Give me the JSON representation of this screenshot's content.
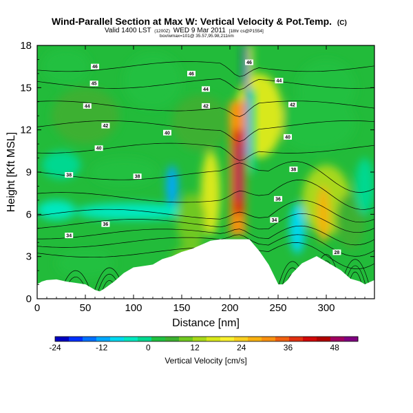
{
  "chart_data": {
    "type": "heatmap",
    "title": "Wind-Parallel Section at Max W: Vertical Velocity & Pot.Temp.",
    "title_mark": "(C)",
    "subtitle": "Valid 1400 LST",
    "subtitle_small1": "(1200Z)",
    "subtitle_date": "WED 9 Mar 2011",
    "subtitle_small2": "[18hr cs@P1554]",
    "subtitle_line3": "box/wmax=101@ 35.57,95.98,211nm",
    "xlabel": "Distance [nm]",
    "ylabel": "Height [Kft MSL]",
    "xlim": [
      0,
      350
    ],
    "ylim": [
      0,
      18
    ],
    "xticks": [
      0,
      50,
      100,
      150,
      200,
      250,
      300
    ],
    "yticks": [
      0,
      3,
      6,
      9,
      12,
      15,
      18
    ],
    "colorbar": {
      "label": "Vertical Velocity [cm/s]",
      "min": -24,
      "max": 54,
      "tick_values": [
        -24,
        -12,
        0,
        12,
        24,
        36,
        48
      ],
      "colors": [
        "#0000c0",
        "#0030ff",
        "#0070ff",
        "#00a8ff",
        "#00d8f0",
        "#00e8c0",
        "#00d890",
        "#20c040",
        "#3cb030",
        "#70c820",
        "#a8d81a",
        "#d8e81a",
        "#f8f030",
        "#f8d020",
        "#f8b010",
        "#f89010",
        "#f06010",
        "#e03010",
        "#d00808",
        "#b00000",
        "#a00060",
        "#800080"
      ]
    },
    "terrain": [
      [
        0,
        1.0
      ],
      [
        5,
        1.2
      ],
      [
        10,
        1.3
      ],
      [
        20,
        1.35
      ],
      [
        30,
        1.2
      ],
      [
        40,
        1.1
      ],
      [
        50,
        1.0
      ],
      [
        55,
        0.8
      ],
      [
        60,
        0.6
      ],
      [
        65,
        0.5
      ],
      [
        70,
        0.7
      ],
      [
        80,
        1.2
      ],
      [
        90,
        1.8
      ],
      [
        100,
        2.2
      ],
      [
        110,
        2.3
      ],
      [
        120,
        2.4
      ],
      [
        130,
        2.8
      ],
      [
        140,
        3.0
      ],
      [
        150,
        3.3
      ],
      [
        160,
        3.5
      ],
      [
        170,
        3.8
      ],
      [
        180,
        4.1
      ],
      [
        190,
        4.2
      ],
      [
        200,
        4.2
      ],
      [
        210,
        4.2
      ],
      [
        220,
        4.2
      ],
      [
        230,
        3.4
      ],
      [
        240,
        2.4
      ],
      [
        245,
        1.7
      ],
      [
        250,
        1.0
      ],
      [
        255,
        1.0
      ],
      [
        260,
        1.3
      ],
      [
        265,
        1.8
      ],
      [
        275,
        2.5
      ],
      [
        290,
        3.0
      ],
      [
        305,
        2.4
      ],
      [
        315,
        2.0
      ],
      [
        325,
        1.4
      ],
      [
        335,
        1.2
      ],
      [
        340,
        1.0
      ],
      [
        350,
        1.3
      ]
    ],
    "contour_labels": [
      {
        "x": 60,
        "y": 16.5,
        "text": "46"
      },
      {
        "x": 160,
        "y": 16.0,
        "text": "46"
      },
      {
        "x": 220,
        "y": 16.8,
        "text": "46"
      },
      {
        "x": 59,
        "y": 15.3,
        "text": "45"
      },
      {
        "x": 175,
        "y": 14.9,
        "text": "44"
      },
      {
        "x": 251,
        "y": 15.5,
        "text": "44"
      },
      {
        "x": 52,
        "y": 13.7,
        "text": "44"
      },
      {
        "x": 175,
        "y": 13.7,
        "text": "42"
      },
      {
        "x": 265,
        "y": 13.8,
        "text": "42"
      },
      {
        "x": 71,
        "y": 12.3,
        "text": "42"
      },
      {
        "x": 135,
        "y": 11.8,
        "text": "40"
      },
      {
        "x": 260,
        "y": 11.5,
        "text": "40"
      },
      {
        "x": 64,
        "y": 10.7,
        "text": "40"
      },
      {
        "x": 33,
        "y": 8.8,
        "text": "38"
      },
      {
        "x": 104,
        "y": 8.7,
        "text": "38"
      },
      {
        "x": 266,
        "y": 9.2,
        "text": "38"
      },
      {
        "x": 250,
        "y": 7.1,
        "text": "36"
      },
      {
        "x": 71,
        "y": 5.3,
        "text": "36"
      },
      {
        "x": 246,
        "y": 5.6,
        "text": "34"
      },
      {
        "x": 33,
        "y": 4.5,
        "text": "34"
      },
      {
        "x": 311,
        "y": 3.3,
        "text": "28"
      }
    ]
  }
}
